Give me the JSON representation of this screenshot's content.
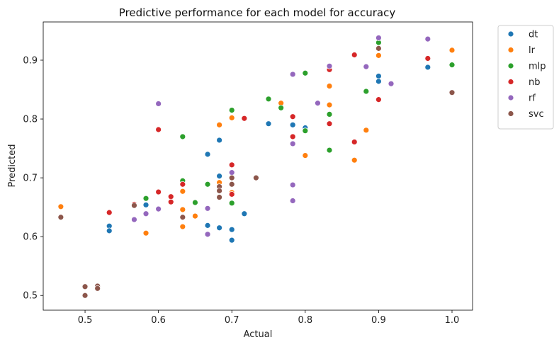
{
  "chart_data": {
    "type": "scatter",
    "title": "Predictive performance for each model for accuracy",
    "xlabel": "Actual",
    "ylabel": "Predicted",
    "xlim": [
      0.443,
      1.028
    ],
    "ylim": [
      0.475,
      0.965
    ],
    "xticks": [
      0.5,
      0.6,
      0.7,
      0.8,
      0.9,
      1.0
    ],
    "xtick_labels": [
      "0.5",
      "0.6",
      "0.7",
      "0.8",
      "0.9",
      "1.0"
    ],
    "yticks": [
      0.5,
      0.6,
      0.7,
      0.8,
      0.9
    ],
    "ytick_labels": [
      "0.5",
      "0.6",
      "0.7",
      "0.8",
      "0.9"
    ],
    "grid": false,
    "legend_position": "outside-top-right",
    "series": [
      {
        "name": "dt",
        "color": "#1f77b4",
        "points": [
          [
            0.533,
            0.618
          ],
          [
            0.533,
            0.61
          ],
          [
            0.583,
            0.654
          ],
          [
            0.667,
            0.74
          ],
          [
            0.667,
            0.619
          ],
          [
            0.683,
            0.764
          ],
          [
            0.683,
            0.703
          ],
          [
            0.683,
            0.615
          ],
          [
            0.7,
            0.612
          ],
          [
            0.7,
            0.594
          ],
          [
            0.717,
            0.639
          ],
          [
            0.75,
            0.792
          ],
          [
            0.783,
            0.79
          ],
          [
            0.8,
            0.785
          ],
          [
            0.9,
            0.873
          ],
          [
            0.9,
            0.864
          ],
          [
            0.967,
            0.888
          ]
        ]
      },
      {
        "name": "lr",
        "color": "#ff7f0e",
        "points": [
          [
            0.467,
            0.651
          ],
          [
            0.583,
            0.606
          ],
          [
            0.633,
            0.677
          ],
          [
            0.633,
            0.646
          ],
          [
            0.633,
            0.617
          ],
          [
            0.65,
            0.635
          ],
          [
            0.683,
            0.79
          ],
          [
            0.683,
            0.692
          ],
          [
            0.7,
            0.802
          ],
          [
            0.7,
            0.675
          ],
          [
            0.767,
            0.827
          ],
          [
            0.8,
            0.738
          ],
          [
            0.833,
            0.856
          ],
          [
            0.833,
            0.824
          ],
          [
            0.867,
            0.73
          ],
          [
            0.883,
            0.781
          ],
          [
            0.9,
            0.908
          ],
          [
            1.0,
            0.917
          ]
        ]
      },
      {
        "name": "mlp",
        "color": "#2ca02c",
        "points": [
          [
            0.583,
            0.665
          ],
          [
            0.633,
            0.77
          ],
          [
            0.633,
            0.695
          ],
          [
            0.65,
            0.658
          ],
          [
            0.667,
            0.689
          ],
          [
            0.7,
            0.815
          ],
          [
            0.7,
            0.657
          ],
          [
            0.75,
            0.834
          ],
          [
            0.767,
            0.819
          ],
          [
            0.8,
            0.878
          ],
          [
            0.8,
            0.78
          ],
          [
            0.833,
            0.808
          ],
          [
            0.833,
            0.747
          ],
          [
            0.883,
            0.847
          ],
          [
            0.9,
            0.93
          ],
          [
            1.0,
            0.892
          ]
        ]
      },
      {
        "name": "nb",
        "color": "#d62728",
        "points": [
          [
            0.533,
            0.641
          ],
          [
            0.567,
            0.655
          ],
          [
            0.6,
            0.782
          ],
          [
            0.6,
            0.676
          ],
          [
            0.617,
            0.668
          ],
          [
            0.617,
            0.659
          ],
          [
            0.633,
            0.689
          ],
          [
            0.7,
            0.722
          ],
          [
            0.7,
            0.672
          ],
          [
            0.717,
            0.801
          ],
          [
            0.783,
            0.804
          ],
          [
            0.783,
            0.77
          ],
          [
            0.833,
            0.884
          ],
          [
            0.833,
            0.792
          ],
          [
            0.867,
            0.909
          ],
          [
            0.867,
            0.761
          ],
          [
            0.9,
            0.833
          ],
          [
            0.967,
            0.903
          ]
        ]
      },
      {
        "name": "rf",
        "color": "#9467bd",
        "points": [
          [
            0.567,
            0.629
          ],
          [
            0.583,
            0.639
          ],
          [
            0.6,
            0.826
          ],
          [
            0.6,
            0.647
          ],
          [
            0.667,
            0.648
          ],
          [
            0.667,
            0.604
          ],
          [
            0.7,
            0.709
          ],
          [
            0.783,
            0.876
          ],
          [
            0.783,
            0.758
          ],
          [
            0.783,
            0.688
          ],
          [
            0.783,
            0.661
          ],
          [
            0.817,
            0.827
          ],
          [
            0.833,
            0.89
          ],
          [
            0.883,
            0.889
          ],
          [
            0.9,
            0.938
          ],
          [
            0.917,
            0.86
          ],
          [
            0.967,
            0.936
          ]
        ]
      },
      {
        "name": "svc",
        "color": "#8c564b",
        "points": [
          [
            0.467,
            0.633
          ],
          [
            0.5,
            0.515
          ],
          [
            0.5,
            0.5
          ],
          [
            0.517,
            0.516
          ],
          [
            0.517,
            0.512
          ],
          [
            0.567,
            0.653
          ],
          [
            0.633,
            0.633
          ],
          [
            0.683,
            0.685
          ],
          [
            0.683,
            0.678
          ],
          [
            0.683,
            0.667
          ],
          [
            0.7,
            0.7
          ],
          [
            0.7,
            0.689
          ],
          [
            0.733,
            0.7
          ],
          [
            0.9,
            0.92
          ],
          [
            1.0,
            0.845
          ]
        ]
      }
    ]
  }
}
